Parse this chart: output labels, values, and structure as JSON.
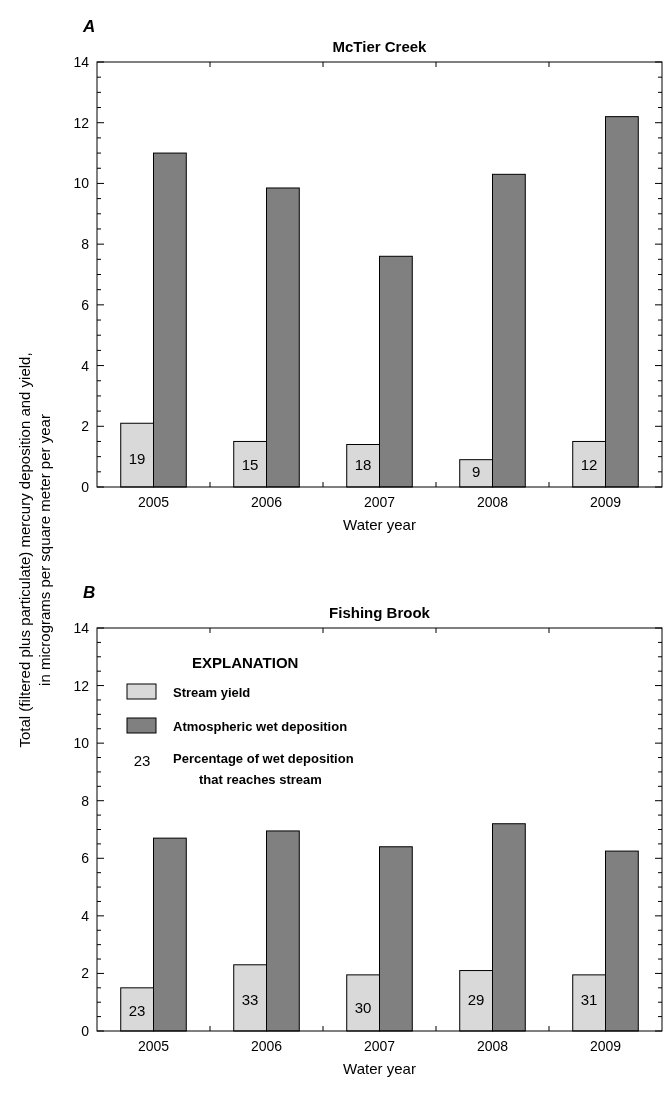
{
  "chart_data": [
    {
      "type": "bar",
      "title": "McTier Creek",
      "xlabel": "Water year",
      "ylabel": "Total (filtered plus particulate) mercury deposition and yield, in micrograms per square meter per year",
      "annotations": [
        "A",
        {
          "text": "19",
          "x": "2005",
          "y": 0.95
        },
        {
          "text": "15",
          "x": "2006",
          "y": 0.75
        },
        {
          "text": "18",
          "x": "2007",
          "y": 0.75
        },
        {
          "text": "9",
          "x": "2008",
          "y": 0.5
        },
        {
          "text": "12",
          "x": "2009",
          "y": 0.75
        }
      ],
      "categories": [
        "2005",
        "2006",
        "2007",
        "2008",
        "2009"
      ],
      "series": [
        {
          "color": "#d9d9d9",
          "values": [
            2.1,
            1.5,
            1.4,
            0.9,
            1.5
          ]
        },
        {
          "color": "#808080",
          "values": [
            11.0,
            9.85,
            7.6,
            10.3,
            12.2
          ]
        }
      ],
      "ylim": [
        0,
        14
      ],
      "yticks": [
        0,
        {
          "value": 0.5,
          "label": null
        },
        2,
        {
          "value": 1,
          "label": null
        },
        {
          "value": 1.5,
          "label": null
        },
        {
          "value": 2.5,
          "label": null
        },
        {
          "value": 3,
          "label": null
        },
        {
          "value": 3.5,
          "label": null
        },
        4,
        {
          "value": 4.5,
          "label": null
        },
        {
          "value": 5,
          "label": null
        },
        {
          "value": 5.5,
          "label": null
        },
        6,
        {
          "value": 6.5,
          "label": null
        },
        {
          "value": 7,
          "label": null
        },
        {
          "value": 7.5,
          "label": null
        },
        8,
        {
          "value": 8.5,
          "label": null
        },
        {
          "value": 9,
          "label": null
        },
        {
          "value": 9.5,
          "label": null
        },
        10,
        {
          "value": 10.5,
          "label": null
        },
        {
          "value": 11,
          "label": null
        },
        {
          "value": 11.5,
          "label": null
        },
        12,
        {
          "value": 12.5,
          "label": null
        },
        {
          "value": 13,
          "label": null
        },
        {
          "value": 13.5,
          "label": null
        },
        14
      ],
      "grid": false
    },
    {
      "type": "bar",
      "title": "Fishing Brook",
      "xlabel": "Water year",
      "annotations": [
        "B",
        "23",
        "Percentage of wet deposition that reaches stream",
        {
          "text": "23",
          "x": "2005",
          "y": 0.7
        },
        {
          "text": "33",
          "x": "2006",
          "y": 1.1
        },
        {
          "text": "30",
          "x": "2007",
          "y": 0.8
        },
        {
          "text": "29",
          "x": "2008",
          "y": 1.1
        },
        {
          "text": "31",
          "x": "2009",
          "y": 1.1
        }
      ],
      "legend_title": "EXPLANATION",
      "legend": "top left",
      "categories": [
        "2005",
        "2006",
        "2007",
        "2008",
        "2009"
      ],
      "series": [
        {
          "name": "Stream yield",
          "color": "#d9d9d9",
          "values": [
            1.5,
            2.3,
            1.95,
            2.1,
            1.95
          ]
        },
        {
          "name": "Atmospheric wet deposition",
          "color": "#808080",
          "values": [
            6.7,
            6.95,
            6.4,
            7.2,
            6.25
          ]
        }
      ],
      "ylim": [
        0,
        14
      ],
      "yticks": [
        0,
        {
          "value": 0.5,
          "label": null
        },
        2,
        {
          "value": 1,
          "label": null
        },
        {
          "value": 1.5,
          "label": null
        },
        {
          "value": 2.5,
          "label": null
        },
        {
          "value": 3,
          "label": null
        },
        {
          "value": 3.5,
          "label": null
        },
        4,
        {
          "value": 4.5,
          "label": null
        },
        {
          "value": 5,
          "label": null
        },
        {
          "value": 5.5,
          "label": null
        },
        6,
        {
          "value": 6.5,
          "label": null
        },
        {
          "value": 7,
          "label": null
        },
        {
          "value": 7.5,
          "label": null
        },
        8,
        {
          "value": 8.5,
          "label": null
        },
        {
          "value": 9,
          "label": null
        },
        {
          "value": 9.5,
          "label": null
        },
        10,
        {
          "value": 10.5,
          "label": null
        },
        {
          "value": 11,
          "label": null
        },
        {
          "value": 11.5,
          "label": null
        },
        12,
        {
          "value": 12.5,
          "label": null
        },
        {
          "value": 13,
          "label": null
        },
        {
          "value": 13.5,
          "label": null
        },
        14
      ],
      "grid": false
    }
  ]
}
